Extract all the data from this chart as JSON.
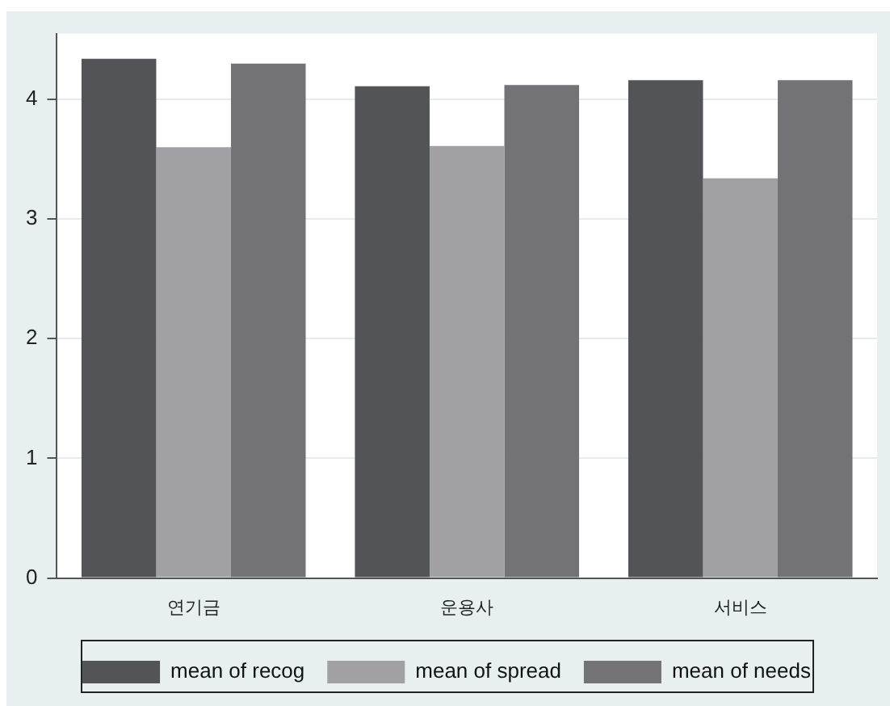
{
  "chart_data": {
    "type": "bar",
    "categories": [
      "연기금",
      "운용사",
      "서비스"
    ],
    "series": [
      {
        "name": "mean of recog",
        "color": "#535457",
        "values": [
          4.34,
          4.11,
          4.16
        ]
      },
      {
        "name": "mean of spread",
        "color": "#a1a1a5",
        "values": [
          3.6,
          3.61,
          3.34
        ]
      },
      {
        "name": "mean of needs",
        "color": "#737377",
        "values": [
          4.3,
          4.12,
          4.16
        ]
      }
    ],
    "ylim": [
      0,
      4.55
    ],
    "yticks": [
      0,
      1,
      2,
      3,
      4
    ],
    "grid": "y",
    "legend": "bottom"
  }
}
